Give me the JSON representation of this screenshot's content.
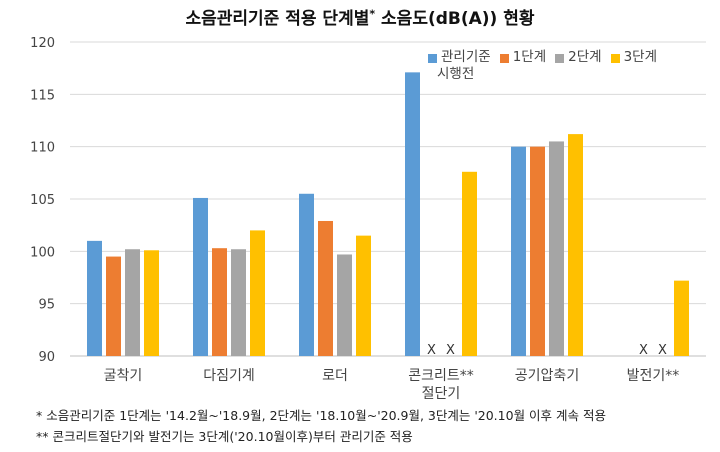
{
  "chart_data": {
    "type": "bar",
    "title_main": "소음관리기준 적용 단계별",
    "title_mark": "*",
    "title_rest": " 소음도(dB(A)) 현황",
    "categories": [
      "굴착기",
      "다짐기계",
      "로더",
      "콘크리트** 절단기",
      "공기압축기",
      "발전기**"
    ],
    "category_lines": [
      [
        "굴착기"
      ],
      [
        "다짐기계"
      ],
      [
        "로더"
      ],
      [
        "콘크리트**",
        "절단기"
      ],
      [
        "공기압축기"
      ],
      [
        "발전기**"
      ]
    ],
    "series": [
      {
        "name": "관리기준 시행전",
        "name_lines": [
          "관리기준",
          "시행전"
        ],
        "color": "#5B9BD5",
        "values": [
          101.0,
          105.1,
          105.5,
          117.1,
          110.0,
          null
        ]
      },
      {
        "name": "1단계",
        "name_lines": [
          "1단계"
        ],
        "color": "#ED7D31",
        "values": [
          99.5,
          100.3,
          102.9,
          null,
          110.0,
          null
        ]
      },
      {
        "name": "2단계",
        "name_lines": [
          "2단계"
        ],
        "color": "#A5A5A5",
        "values": [
          100.2,
          100.2,
          99.7,
          null,
          110.5,
          null
        ]
      },
      {
        "name": "3단계",
        "name_lines": [
          "3단계"
        ],
        "color": "#FFC000",
        "values": [
          100.1,
          102.0,
          101.5,
          107.6,
          111.2,
          97.2
        ]
      }
    ],
    "missing_marker": "X",
    "ylim": [
      90,
      120
    ],
    "yticks": [
      90,
      95,
      100,
      105,
      110,
      115,
      120
    ],
    "grid": true,
    "legend_position": "top-right"
  },
  "footnotes": [
    "* 소음관리기준 1단계는 '14.2월~'18.9월, 2단계는 '18.10월~'20.9월, 3단계는 '20.10월 이후 계속 적용",
    "** 콘크리트절단기와 발전기는 3단계('20.10월이후)부터 관리기준 적용"
  ]
}
